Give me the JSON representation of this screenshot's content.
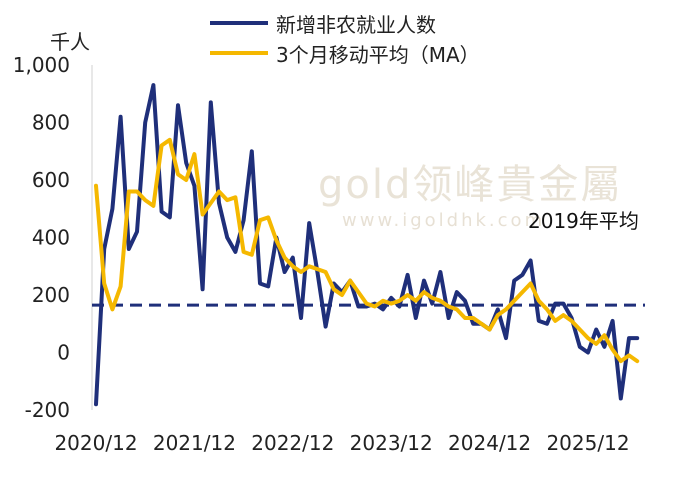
{
  "chart_data": {
    "type": "line",
    "unit": "千人",
    "ylim": [
      -200,
      1000
    ],
    "yticks": [
      "1,000",
      "800",
      "600",
      "400",
      "200",
      "0",
      "-200"
    ],
    "ytick_values": [
      1000,
      800,
      600,
      400,
      200,
      0,
      -200
    ],
    "xtick_labels": [
      "2020/12",
      "2021/12",
      "2022/12",
      "2023/12",
      "2024/12",
      "2025/12"
    ],
    "x_start": "2020/12",
    "grid": false,
    "legend_position": "top",
    "reference_line": {
      "label": "2019年平均",
      "value": 165,
      "color": "#1f2f7a"
    },
    "series": [
      {
        "name": "新增非农就业人数",
        "color": "#1f2f7a",
        "values": [
          -180,
          360,
          500,
          820,
          360,
          420,
          800,
          930,
          490,
          470,
          860,
          660,
          580,
          220,
          870,
          520,
          400,
          350,
          460,
          700,
          240,
          230,
          400,
          280,
          330,
          120,
          450,
          280,
          90,
          240,
          210,
          250,
          160,
          160,
          170,
          150,
          190,
          160,
          270,
          120,
          250,
          170,
          280,
          120,
          210,
          180,
          100,
          100,
          80,
          150,
          50,
          250,
          270,
          320,
          110,
          100,
          170,
          170,
          120,
          20,
          0,
          80,
          20,
          110,
          -160,
          50,
          50
        ]
      },
      {
        "name": "3个月移动平均（MA）",
        "color": "#f5b800",
        "values": [
          580,
          240,
          150,
          230,
          560,
          560,
          530,
          510,
          720,
          740,
          620,
          600,
          690,
          480,
          520,
          560,
          530,
          540,
          350,
          340,
          460,
          470,
          390,
          330,
          300,
          280,
          300,
          290,
          280,
          220,
          200,
          250,
          210,
          170,
          160,
          180,
          170,
          180,
          200,
          180,
          210,
          190,
          180,
          160,
          150,
          120,
          120,
          100,
          80,
          130,
          150,
          180,
          210,
          240,
          180,
          150,
          110,
          130,
          110,
          80,
          50,
          30,
          60,
          10,
          -30,
          -10,
          -30
        ]
      }
    ]
  },
  "legend": {
    "items": [
      {
        "label": "新增非农就业人数",
        "color": "#1f2f7a"
      },
      {
        "label": "3个月移动平均（MA）",
        "color": "#f5b800"
      }
    ]
  },
  "watermark": {
    "text": "gold领峰貴金屬",
    "url": "www.igoldhk.com"
  }
}
